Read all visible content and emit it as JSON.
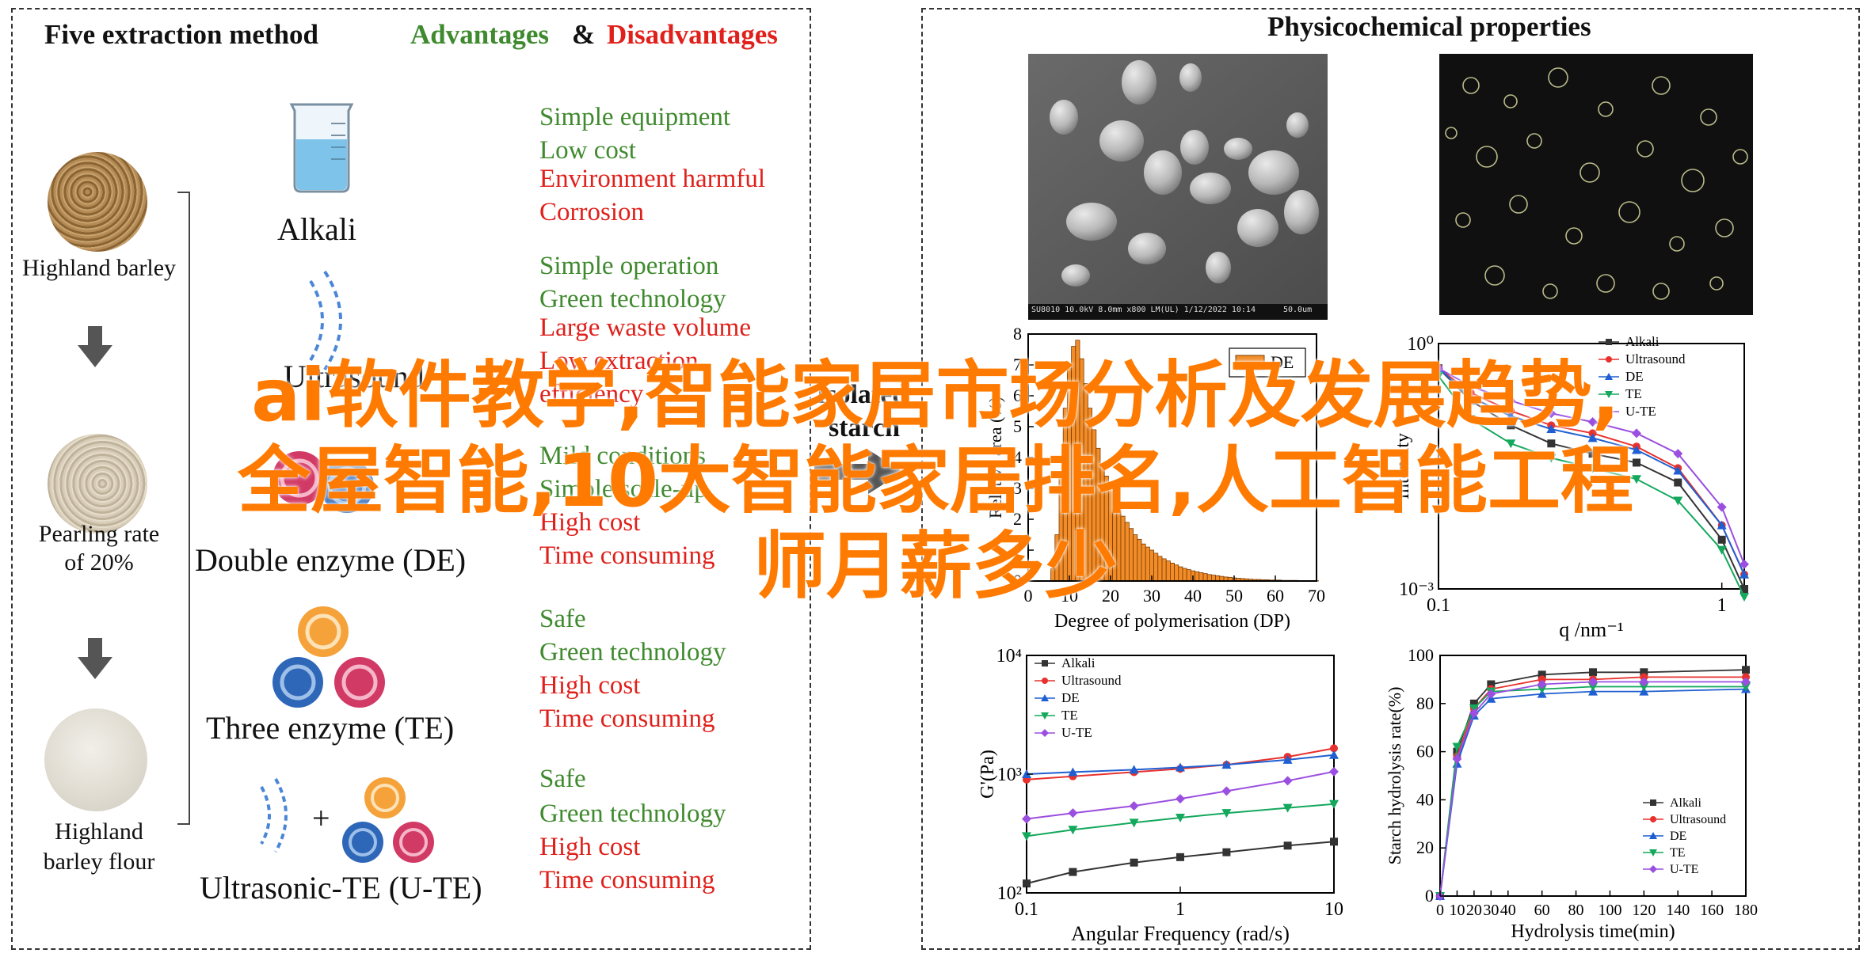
{
  "left": {
    "title": "Five extraction method",
    "advantages_label": "Advantages",
    "amp": "&",
    "disadvantages_label": "Disadvantages",
    "samples": [
      {
        "label": "Highland barley"
      },
      {
        "label_line1": "Pearling rate",
        "label_line2": "of 20%"
      },
      {
        "label_line1": "Highland",
        "label_line2": "barley flour"
      }
    ],
    "methods": [
      {
        "label": "Alkali",
        "pros": [
          "Simple equipment",
          "Low cost"
        ],
        "cons": [
          "Environment harmful",
          "Corrosion"
        ]
      },
      {
        "label": "Ultrasound",
        "pros": [
          "Simple operation",
          "Green technology"
        ],
        "cons": [
          "Large waste volume",
          "Low extraction",
          "efficiency"
        ]
      },
      {
        "label": "Double enzyme (DE)",
        "pros": [
          "Mild conditions",
          "Simple scale-up"
        ],
        "cons": [
          "High cost",
          "Time consuming"
        ]
      },
      {
        "label": "Three enzyme (TE)",
        "pros": [
          "Safe",
          "Green technology"
        ],
        "cons": [
          "High cost",
          "Time consuming"
        ]
      },
      {
        "label": "Ultrasonic-TE (U-TE)",
        "pros": [
          "Safe",
          "Green technology"
        ],
        "cons": [
          "High cost",
          "Time consuming"
        ]
      }
    ],
    "isolated_line1": "Isolated",
    "isolated_line2": "starch",
    "plus": "+"
  },
  "right": {
    "title": "Physicochemical properties",
    "sem_caption": "SU8010 10.0kV 8.0mm x800 LM(UL) 1/12/2022 10:14",
    "sem_scale": "50.0um"
  },
  "colors": {
    "green": "#3f8a2e",
    "red": "#e0201b",
    "overlay": "#ff7a00",
    "hist": "#f28c28"
  },
  "overlay": {
    "line1": "ai软件教学,智能家居市场分析及发展趋势,",
    "line2": "全屋智能,10大智能家居排名,人工智能工程",
    "line3": "师月薪多少"
  },
  "chart_data": [
    {
      "type": "bar",
      "title": "",
      "xlabel": "Degree of polymerisation (DP)",
      "ylabel": "Relative area (%)",
      "legend": [
        "DE"
      ],
      "xlim": [
        0,
        70
      ],
      "ylim": [
        0,
        8
      ],
      "xticks": [
        0,
        10,
        20,
        30,
        40,
        50,
        60,
        70
      ],
      "yticks": [
        0,
        1,
        2,
        3,
        4,
        5,
        6,
        7,
        8
      ],
      "x": [
        6,
        7,
        8,
        9,
        10,
        11,
        12,
        13,
        14,
        15,
        16,
        17,
        18,
        19,
        20,
        21,
        22,
        23,
        24,
        25,
        26,
        27,
        28,
        29,
        30,
        31,
        32,
        33,
        34,
        35,
        36,
        37,
        38,
        39,
        40,
        41,
        42,
        43,
        44,
        45,
        46,
        47,
        48,
        49,
        50,
        51,
        52,
        53,
        54,
        55,
        56,
        57,
        58,
        59,
        60,
        61,
        62,
        63,
        64,
        65,
        66,
        67,
        68,
        69,
        70
      ],
      "values": [
        0.4,
        1.5,
        3.5,
        5.6,
        6.9,
        7.6,
        7.8,
        7.2,
        6.4,
        5.6,
        4.9,
        4.3,
        3.8,
        3.4,
        3.0,
        2.7,
        2.4,
        2.1,
        1.9,
        1.7,
        1.5,
        1.35,
        1.2,
        1.1,
        1.0,
        0.9,
        0.8,
        0.72,
        0.65,
        0.58,
        0.52,
        0.46,
        0.41,
        0.37,
        0.33,
        0.3,
        0.27,
        0.24,
        0.21,
        0.19,
        0.17,
        0.15,
        0.13,
        0.12,
        0.1,
        0.09,
        0.08,
        0.07,
        0.06,
        0.05,
        0.05,
        0.04,
        0.04,
        0.03,
        0.03,
        0.03,
        0.02,
        0.02,
        0.02,
        0.02,
        0.01,
        0.01,
        0.01,
        0.01,
        0.01
      ]
    },
    {
      "type": "line",
      "title": "",
      "xlabel": "q /nm⁻¹",
      "ylabel": "Intensity",
      "scale": "log-log",
      "xlim": [
        0.1,
        1.2
      ],
      "ylim": [
        0.001,
        1
      ],
      "xticks": [
        "0.1",
        "1"
      ],
      "yticks": [
        "10⁻³",
        "10⁰"
      ],
      "legend": "top-right",
      "series": [
        {
          "name": "Alkali",
          "color": "#333333",
          "marker": "square",
          "x": [
            0.1,
            0.13,
            0.18,
            0.25,
            0.35,
            0.5,
            0.7,
            1.0,
            1.2
          ],
          "y": [
            0.5,
            0.2,
            0.1,
            0.06,
            0.045,
            0.035,
            0.02,
            0.004,
            0.001
          ]
        },
        {
          "name": "Ultrasound",
          "color": "#e8312d",
          "marker": "circle",
          "x": [
            0.1,
            0.13,
            0.18,
            0.25,
            0.35,
            0.5,
            0.7,
            1.0,
            1.2
          ],
          "y": [
            0.5,
            0.25,
            0.15,
            0.1,
            0.08,
            0.055,
            0.03,
            0.006,
            0.0015
          ]
        },
        {
          "name": "DE",
          "color": "#1f5fd1",
          "marker": "triangle-up",
          "x": [
            0.1,
            0.13,
            0.18,
            0.25,
            0.35,
            0.5,
            0.7,
            1.0,
            1.2
          ],
          "y": [
            0.5,
            0.22,
            0.13,
            0.09,
            0.07,
            0.05,
            0.028,
            0.006,
            0.0015
          ]
        },
        {
          "name": "TE",
          "color": "#13a85c",
          "marker": "triangle-down",
          "x": [
            0.1,
            0.13,
            0.18,
            0.25,
            0.35,
            0.5,
            0.7,
            1.0,
            1.2
          ],
          "y": [
            0.4,
            0.12,
            0.06,
            0.04,
            0.03,
            0.022,
            0.012,
            0.003,
            0.0008
          ]
        },
        {
          "name": "U-TE",
          "color": "#9b4fe0",
          "marker": "diamond",
          "x": [
            0.1,
            0.13,
            0.18,
            0.25,
            0.35,
            0.5,
            0.7,
            1.0,
            1.2
          ],
          "y": [
            0.5,
            0.3,
            0.2,
            0.14,
            0.11,
            0.08,
            0.045,
            0.01,
            0.002
          ]
        }
      ]
    },
    {
      "type": "scatter",
      "title": "",
      "xlabel": "Angular Frequency (rad/s)",
      "ylabel": "G'(Pa)",
      "scale": "log-log",
      "xlim": [
        0.1,
        10
      ],
      "ylim": [
        100,
        10000
      ],
      "xticks": [
        "0.1",
        "1",
        "10"
      ],
      "yticks": [
        "10²",
        "10³",
        "10⁴"
      ],
      "legend": "top-left",
      "series": [
        {
          "name": "Alkali",
          "color": "#333333",
          "marker": "square",
          "x": [
            0.1,
            0.2,
            0.5,
            1,
            2,
            5,
            10
          ],
          "y": [
            120,
            150,
            180,
            200,
            220,
            250,
            270
          ]
        },
        {
          "name": "Ultrasound",
          "color": "#e8312d",
          "marker": "circle",
          "x": [
            0.1,
            0.2,
            0.5,
            1,
            2,
            5,
            10
          ],
          "y": [
            900,
            960,
            1040,
            1110,
            1200,
            1400,
            1650
          ]
        },
        {
          "name": "DE",
          "color": "#1f5fd1",
          "marker": "triangle-up",
          "x": [
            0.1,
            0.2,
            0.5,
            1,
            2,
            5,
            10
          ],
          "y": [
            1000,
            1040,
            1090,
            1140,
            1200,
            1320,
            1450
          ]
        },
        {
          "name": "TE",
          "color": "#13a85c",
          "marker": "triangle-down",
          "x": [
            0.1,
            0.2,
            0.5,
            1,
            2,
            5,
            10
          ],
          "y": [
            300,
            340,
            390,
            430,
            470,
            520,
            560
          ]
        },
        {
          "name": "U-TE",
          "color": "#9b4fe0",
          "marker": "diamond",
          "x": [
            0.1,
            0.2,
            0.5,
            1,
            2,
            5,
            10
          ],
          "y": [
            420,
            470,
            540,
            620,
            720,
            880,
            1050
          ]
        }
      ]
    },
    {
      "type": "line",
      "title": "",
      "xlabel": "Hydrolysis time(min)",
      "ylabel": "Starch hydrolysis rate(%)",
      "xlim": [
        0,
        180
      ],
      "ylim": [
        0,
        100
      ],
      "xticks": [
        0,
        10,
        20,
        30,
        40,
        60,
        80,
        100,
        120,
        140,
        160,
        180
      ],
      "yticks": [
        0,
        20,
        40,
        60,
        80,
        100
      ],
      "legend": "bottom-right",
      "series": [
        {
          "name": "Alkali",
          "color": "#333333",
          "marker": "square",
          "x": [
            0,
            10,
            20,
            30,
            60,
            90,
            120,
            180
          ],
          "y": [
            0,
            60,
            80,
            88,
            92,
            93,
            93,
            94
          ]
        },
        {
          "name": "Ultrasound",
          "color": "#e8312d",
          "marker": "circle",
          "x": [
            0,
            10,
            20,
            30,
            60,
            90,
            120,
            180
          ],
          "y": [
            0,
            58,
            78,
            86,
            90,
            90,
            91,
            91
          ]
        },
        {
          "name": "DE",
          "color": "#1f5fd1",
          "marker": "triangle-up",
          "x": [
            0,
            10,
            20,
            30,
            60,
            90,
            120,
            180
          ],
          "y": [
            0,
            55,
            75,
            82,
            84,
            85,
            85,
            86
          ]
        },
        {
          "name": "TE",
          "color": "#13a85c",
          "marker": "triangle-down",
          "x": [
            0,
            10,
            20,
            30,
            60,
            90,
            120,
            180
          ],
          "y": [
            0,
            62,
            78,
            85,
            86,
            87,
            87,
            87
          ]
        },
        {
          "name": "U-TE",
          "color": "#9b4fe0",
          "marker": "diamond",
          "x": [
            0,
            10,
            20,
            30,
            60,
            90,
            120,
            180
          ],
          "y": [
            0,
            57,
            76,
            84,
            88,
            89,
            89,
            89
          ]
        }
      ]
    }
  ]
}
